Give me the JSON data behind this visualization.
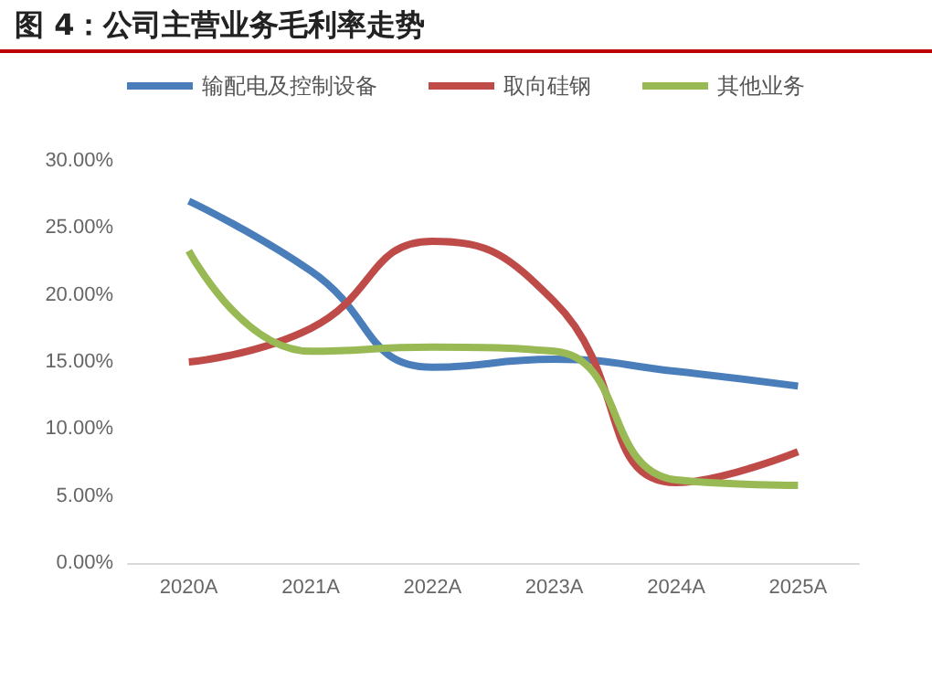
{
  "chart_data": {
    "type": "line",
    "title": "图 4：公司主营业务毛利率走势",
    "categories": [
      "2020A",
      "2021A",
      "2022A",
      "2023A",
      "2024A",
      "2025A"
    ],
    "series": [
      {
        "name": "输配电及控制设备",
        "color": "#4a7ebb",
        "values": [
          27.0,
          21.8,
          14.6,
          15.2,
          14.3,
          13.2
        ]
      },
      {
        "name": "取向硅钢",
        "color": "#be4b48",
        "values": [
          15.0,
          17.5,
          24.0,
          19.5,
          6.0,
          8.3
        ]
      },
      {
        "name": "其他业务",
        "color": "#98b954",
        "values": [
          23.3,
          15.8,
          16.1,
          15.8,
          6.2,
          5.8
        ]
      }
    ],
    "ylim": [
      0,
      30
    ],
    "yticks": [
      {
        "value": 0,
        "label": "0.00%"
      },
      {
        "value": 5,
        "label": "5.00%"
      },
      {
        "value": 10,
        "label": "10.00%"
      },
      {
        "value": 15,
        "label": "15.00%"
      },
      {
        "value": 20,
        "label": "20.00%"
      },
      {
        "value": 25,
        "label": "25.00%"
      },
      {
        "value": 30,
        "label": "30.00%"
      }
    ],
    "grid": false,
    "legend": "top",
    "marker": "none",
    "line_style": "solid"
  }
}
